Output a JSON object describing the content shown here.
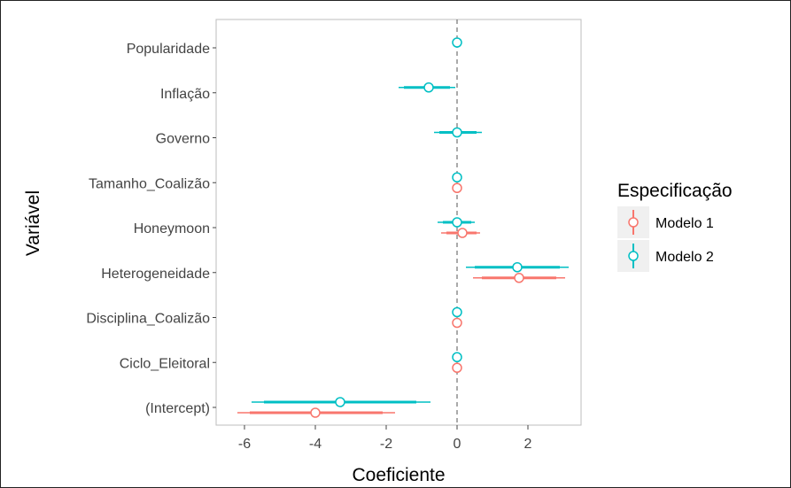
{
  "chart_data": {
    "type": "scatter",
    "xlabel": "Coeficiente",
    "ylabel": "Variável",
    "xlim": [
      -6.8,
      3.5
    ],
    "x_ticks": [
      -6,
      -4,
      -2,
      0,
      2
    ],
    "x_tick_labels": [
      "-6",
      "-4",
      "-2",
      "0",
      "2"
    ],
    "reference_line_x": 0,
    "categories": [
      "Popularidade",
      "Inflação",
      "Governo",
      "Tamanho_Coalizão",
      "Honeymoon",
      "Heterogeneidade",
      "Disciplina_Coalizão",
      "Ciclo_Eleitoral",
      "(Intercept)"
    ],
    "legend": {
      "title": "Especificação",
      "position": "right"
    },
    "grid": false,
    "series": [
      {
        "name": "Modelo 1",
        "color": "#f8766d",
        "points": [
          {
            "category": "Tamanho_Coalizão",
            "estimate": 0.0,
            "lo95": -0.05,
            "hi95": 0.05,
            "lo90": -0.03,
            "hi90": 0.03
          },
          {
            "category": "Honeymoon",
            "estimate": 0.15,
            "lo95": -0.45,
            "hi95": 0.65,
            "lo90": -0.3,
            "hi90": 0.55
          },
          {
            "category": "Heterogeneidade",
            "estimate": 1.75,
            "lo95": 0.45,
            "hi95": 3.05,
            "lo90": 0.7,
            "hi90": 2.8
          },
          {
            "category": "Disciplina_Coalizão",
            "estimate": 0.0,
            "lo95": -0.05,
            "hi95": 0.05,
            "lo90": -0.03,
            "hi90": 0.03
          },
          {
            "category": "Ciclo_Eleitoral",
            "estimate": 0.0,
            "lo95": -0.05,
            "hi95": 0.05,
            "lo90": -0.03,
            "hi90": 0.03
          },
          {
            "category": "(Intercept)",
            "estimate": -4.0,
            "lo95": -6.2,
            "hi95": -1.75,
            "lo90": -5.85,
            "hi90": -2.1
          }
        ]
      },
      {
        "name": "Modelo 2",
        "color": "#00bfc4",
        "points": [
          {
            "category": "Popularidade",
            "estimate": 0.0,
            "lo95": -0.05,
            "hi95": 0.05,
            "lo90": -0.03,
            "hi90": 0.03
          },
          {
            "category": "Inflação",
            "estimate": -0.8,
            "lo95": -1.65,
            "hi95": -0.05,
            "lo90": -1.5,
            "hi90": -0.2
          },
          {
            "category": "Governo",
            "estimate": 0.0,
            "lo95": -0.65,
            "hi95": 0.7,
            "lo90": -0.5,
            "hi90": 0.55
          },
          {
            "category": "Tamanho_Coalizão",
            "estimate": 0.0,
            "lo95": -0.05,
            "hi95": 0.05,
            "lo90": -0.03,
            "hi90": 0.03
          },
          {
            "category": "Honeymoon",
            "estimate": 0.0,
            "lo95": -0.55,
            "hi95": 0.5,
            "lo90": -0.4,
            "hi90": 0.4
          },
          {
            "category": "Heterogeneidade",
            "estimate": 1.7,
            "lo95": 0.25,
            "hi95": 3.15,
            "lo90": 0.5,
            "hi90": 2.9
          },
          {
            "category": "Disciplina_Coalizão",
            "estimate": 0.0,
            "lo95": -0.05,
            "hi95": 0.05,
            "lo90": -0.03,
            "hi90": 0.03
          },
          {
            "category": "Ciclo_Eleitoral",
            "estimate": 0.0,
            "lo95": -0.05,
            "hi95": 0.05,
            "lo90": -0.03,
            "hi90": 0.03
          },
          {
            "category": "(Intercept)",
            "estimate": -3.3,
            "lo95": -5.8,
            "hi95": -0.75,
            "lo90": -5.45,
            "hi90": -1.15
          }
        ]
      }
    ]
  }
}
